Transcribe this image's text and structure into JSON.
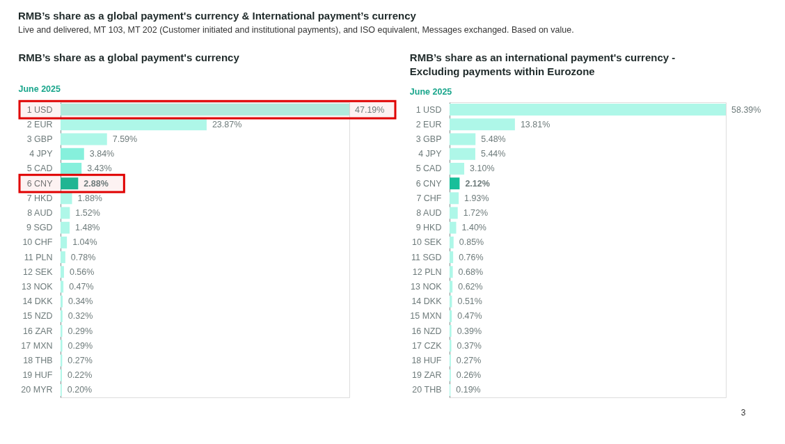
{
  "chart_data": [
    {
      "type": "other",
      "title": "RMB’s share as a global payment's currency & International payment’s currency",
      "subtitle": "Live and delivered, MT 103, MT 202 (Customer initiated and institutional payments), and ISO equivalent, Messages exchanged. Based on value.",
      "annotations": [
        "3"
      ]
    },
    {
      "type": "bar",
      "orientation": "horizontal",
      "title": "RMB’s share as a global payment's currency",
      "subtitle": "June 2025",
      "categories": [
        "1 USD",
        "2 EUR",
        "3 GBP",
        "4 JPY",
        "5 CAD",
        "6 CNY",
        "7 HKD",
        "8 AUD",
        "9 SGD",
        "10 CHF",
        "11 PLN",
        "12 SEK",
        "13 NOK",
        "14 DKK",
        "15 NZD",
        "16 ZAR",
        "17 MXN",
        "18 THB",
        "19 HUF",
        "20 MYR"
      ],
      "values": [
        47.19,
        23.87,
        7.59,
        3.84,
        3.43,
        2.88,
        1.88,
        1.52,
        1.48,
        1.04,
        0.78,
        0.56,
        0.47,
        0.34,
        0.32,
        0.29,
        0.29,
        0.27,
        0.22,
        0.2
      ],
      "colors": [
        "#aef7e8",
        "#aef7e8",
        "#aef7e8",
        "#86f0dc",
        "#86f0dc",
        "#17bf9a",
        "#aef7e8",
        "#aef7e8",
        "#aef7e8",
        "#aef7e8",
        "#aef7e8",
        "#aef7e8",
        "#aef7e8",
        "#aef7e8",
        "#aef7e8",
        "#aef7e8",
        "#aef7e8",
        "#aef7e8",
        "#aef7e8",
        "#aef7e8"
      ],
      "value_labels": [
        "47.19%",
        "23.87%",
        "7.59%",
        "3.84%",
        "3.43%",
        "2.88%",
        "1.88%",
        "1.52%",
        "1.48%",
        "1.04%",
        "0.78%",
        "0.56%",
        "0.47%",
        "0.34%",
        "0.32%",
        "0.29%",
        "0.29%",
        "0.27%",
        "0.22%",
        "0.20%"
      ],
      "bands": [
        {
          "axis": "y",
          "from": "1 USD",
          "to": "1 USD",
          "color": "#e00000"
        },
        {
          "axis": "y",
          "from": "6 CNY",
          "to": "6 CNY",
          "color": "#e00000"
        }
      ]
    },
    {
      "type": "bar",
      "orientation": "horizontal",
      "title": "RMB’s share as an international payment's currency - Excluding payments within Eurozone",
      "subtitle": "June 2025",
      "categories": [
        "1 USD",
        "2 EUR",
        "3 GBP",
        "4 JPY",
        "5 CAD",
        "6 CNY",
        "7 CHF",
        "8 AUD",
        "9 HKD",
        "10 SEK",
        "11 SGD",
        "12 PLN",
        "13 NOK",
        "14 DKK",
        "15 MXN",
        "16 NZD",
        "17 CZK",
        "18 HUF",
        "19 ZAR",
        "20 THB"
      ],
      "values": [
        58.39,
        13.81,
        5.48,
        5.44,
        3.1,
        2.12,
        1.93,
        1.72,
        1.4,
        0.85,
        0.76,
        0.68,
        0.62,
        0.51,
        0.47,
        0.39,
        0.37,
        0.27,
        0.26,
        0.19
      ],
      "colors": [
        "#aef7e8",
        "#aef7e8",
        "#aef7e8",
        "#aef7e8",
        "#aef7e8",
        "#17bf9a",
        "#aef7e8",
        "#aef7e8",
        "#aef7e8",
        "#aef7e8",
        "#aef7e8",
        "#aef7e8",
        "#aef7e8",
        "#aef7e8",
        "#aef7e8",
        "#aef7e8",
        "#aef7e8",
        "#aef7e8",
        "#aef7e8",
        "#aef7e8"
      ],
      "value_labels": [
        "58.39%",
        "13.81%",
        "5.48%",
        "5.44%",
        "3.10%",
        "2.12%",
        "1.93%",
        "1.72%",
        "1.40%",
        "0.85%",
        "0.76%",
        "0.68%",
        "0.62%",
        "0.51%",
        "0.47%",
        "0.39%",
        "0.37%",
        "0.27%",
        "0.26%",
        "0.19%"
      ]
    }
  ]
}
